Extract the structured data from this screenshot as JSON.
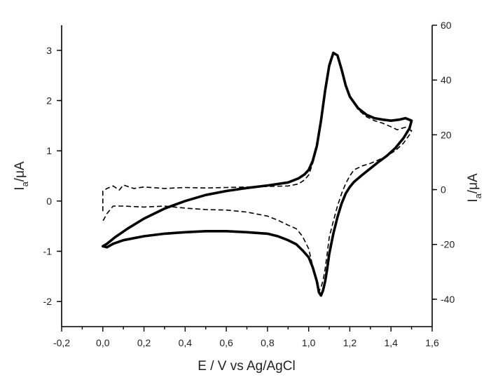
{
  "chart_data": {
    "type": "line",
    "xlabel": "E / V vs Ag/AgCl",
    "xlim": [
      -0.2,
      1.6
    ],
    "x_ticks": [
      "-0,2",
      "0,0",
      "0,2",
      "0,4",
      "0,6",
      "0,8",
      "1,0",
      "1,2",
      "1,4",
      "1,6"
    ],
    "ylabel_left": {
      "main": "I",
      "sub": "a",
      "unit": "/μA"
    },
    "ylim_left": [
      -2.5,
      3.5
    ],
    "y_ticks_left": [
      "-2",
      "-1",
      "0",
      "1",
      "2",
      "3"
    ],
    "ylabel_right": {
      "main": "I",
      "sub": "a",
      "unit": "/μA"
    },
    "ylim_right": [
      -50,
      60
    ],
    "y_ticks_right": [
      "-40",
      "-20",
      "0",
      "20",
      "40",
      "60"
    ],
    "grid": false,
    "series": [
      {
        "style": "solid",
        "axis": "left",
        "x": [
          0.0,
          0.02,
          0.06,
          0.12,
          0.2,
          0.3,
          0.4,
          0.5,
          0.6,
          0.7,
          0.8,
          0.9,
          0.95,
          0.98,
          1.0,
          1.02,
          1.04,
          1.06,
          1.08,
          1.1,
          1.12,
          1.14,
          1.16,
          1.18,
          1.2,
          1.24,
          1.28,
          1.32,
          1.36,
          1.4,
          1.44,
          1.47,
          1.5,
          1.49,
          1.46,
          1.42,
          1.38,
          1.34,
          1.3,
          1.26,
          1.22,
          1.2,
          1.18,
          1.16,
          1.14,
          1.12,
          1.1,
          1.09,
          1.08,
          1.07,
          1.06,
          1.05,
          1.04,
          1.02,
          1.0,
          0.97,
          0.94,
          0.9,
          0.85,
          0.8,
          0.7,
          0.6,
          0.5,
          0.4,
          0.3,
          0.2,
          0.1,
          0.05,
          0.02,
          0.0
        ],
        "y": [
          -0.9,
          -0.85,
          -0.72,
          -0.55,
          -0.35,
          -0.15,
          0.0,
          0.12,
          0.2,
          0.26,
          0.31,
          0.37,
          0.45,
          0.53,
          0.62,
          0.8,
          1.1,
          1.6,
          2.2,
          2.7,
          2.95,
          2.9,
          2.62,
          2.3,
          2.08,
          1.85,
          1.72,
          1.65,
          1.62,
          1.6,
          1.62,
          1.65,
          1.6,
          1.45,
          1.25,
          1.05,
          0.9,
          0.78,
          0.65,
          0.52,
          0.38,
          0.28,
          0.15,
          -0.05,
          -0.32,
          -0.65,
          -1.05,
          -1.35,
          -1.6,
          -1.78,
          -1.88,
          -1.82,
          -1.6,
          -1.32,
          -1.12,
          -0.98,
          -0.86,
          -0.78,
          -0.7,
          -0.65,
          -0.62,
          -0.6,
          -0.6,
          -0.62,
          -0.65,
          -0.7,
          -0.78,
          -0.85,
          -0.92,
          -0.9
        ]
      },
      {
        "style": "dashed",
        "axis": "left",
        "x": [
          0.0,
          0.0,
          0.02,
          0.05,
          0.08,
          0.1,
          0.15,
          0.2,
          0.3,
          0.4,
          0.5,
          0.6,
          0.7,
          0.8,
          0.9,
          0.95,
          0.98,
          1.0,
          1.02,
          1.04,
          1.06,
          1.08,
          1.1,
          1.12,
          1.14,
          1.16,
          1.18,
          1.2,
          1.24,
          1.28,
          1.32,
          1.36,
          1.4,
          1.43,
          1.47,
          1.5,
          1.49,
          1.46,
          1.42,
          1.38,
          1.34,
          1.3,
          1.26,
          1.22,
          1.2,
          1.18,
          1.16,
          1.14,
          1.12,
          1.1,
          1.09,
          1.08,
          1.07,
          1.06,
          1.05,
          1.04,
          1.02,
          1.0,
          0.97,
          0.94,
          0.9,
          0.85,
          0.8,
          0.7,
          0.6,
          0.5,
          0.4,
          0.3,
          0.2,
          0.1,
          0.05,
          0.02,
          0.0
        ],
        "y": [
          -0.2,
          0.2,
          0.25,
          0.3,
          0.22,
          0.32,
          0.25,
          0.28,
          0.25,
          0.27,
          0.26,
          0.27,
          0.28,
          0.29,
          0.3,
          0.34,
          0.42,
          0.52,
          0.75,
          1.05,
          1.55,
          2.15,
          2.65,
          2.92,
          2.9,
          2.62,
          2.3,
          2.08,
          1.82,
          1.68,
          1.6,
          1.55,
          1.48,
          1.42,
          1.47,
          1.4,
          1.32,
          1.15,
          1.0,
          0.9,
          0.82,
          0.75,
          0.7,
          0.62,
          0.5,
          0.35,
          0.15,
          -0.1,
          -0.4,
          -0.72,
          -1.05,
          -1.35,
          -1.58,
          -1.72,
          -1.8,
          -1.65,
          -1.3,
          -0.95,
          -0.7,
          -0.55,
          -0.48,
          -0.38,
          -0.3,
          -0.22,
          -0.18,
          -0.17,
          -0.14,
          -0.1,
          -0.12,
          -0.1,
          -0.1,
          -0.25,
          -0.4
        ]
      }
    ]
  }
}
